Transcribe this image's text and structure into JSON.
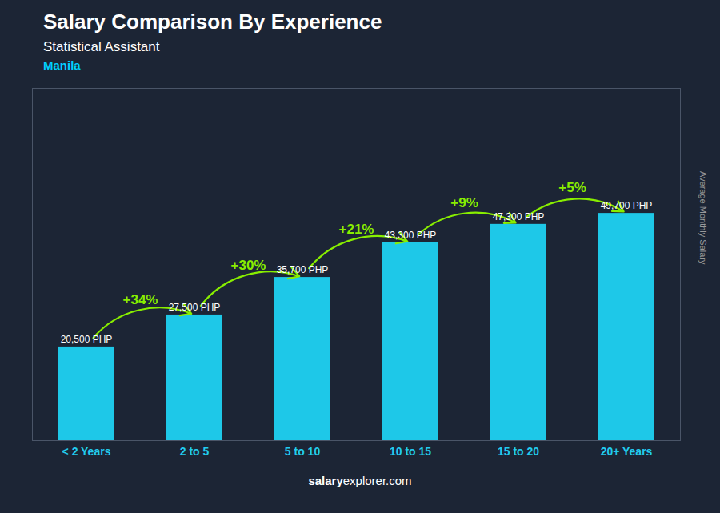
{
  "chart_data": {
    "type": "bar",
    "title": "Salary Comparison By Experience",
    "subtitle": "Statistical Assistant",
    "caption": "Manila",
    "ylabel": "Average Monthly Salary",
    "categories": [
      "< 2 Years",
      "2 to 5",
      "5 to 10",
      "10 to 15",
      "15 to 20",
      "20+ Years"
    ],
    "values": [
      20500,
      27500,
      35700,
      43300,
      47300,
      49700
    ],
    "value_labels": [
      "20,500 PHP",
      "27,500 PHP",
      "35,700 PHP",
      "43,300 PHP",
      "47,300 PHP",
      "49,700 PHP"
    ],
    "data_labels": true,
    "color": "#1EC8E8",
    "ylim": [
      0,
      77035
    ],
    "yticks": [],
    "tick_labels": "x",
    "grid": false,
    "annotations": [
      "+34%",
      "+30%",
      "+21%",
      "+9%",
      "+5%"
    ],
    "footer": [
      "salary",
      "explorer.com"
    ]
  }
}
